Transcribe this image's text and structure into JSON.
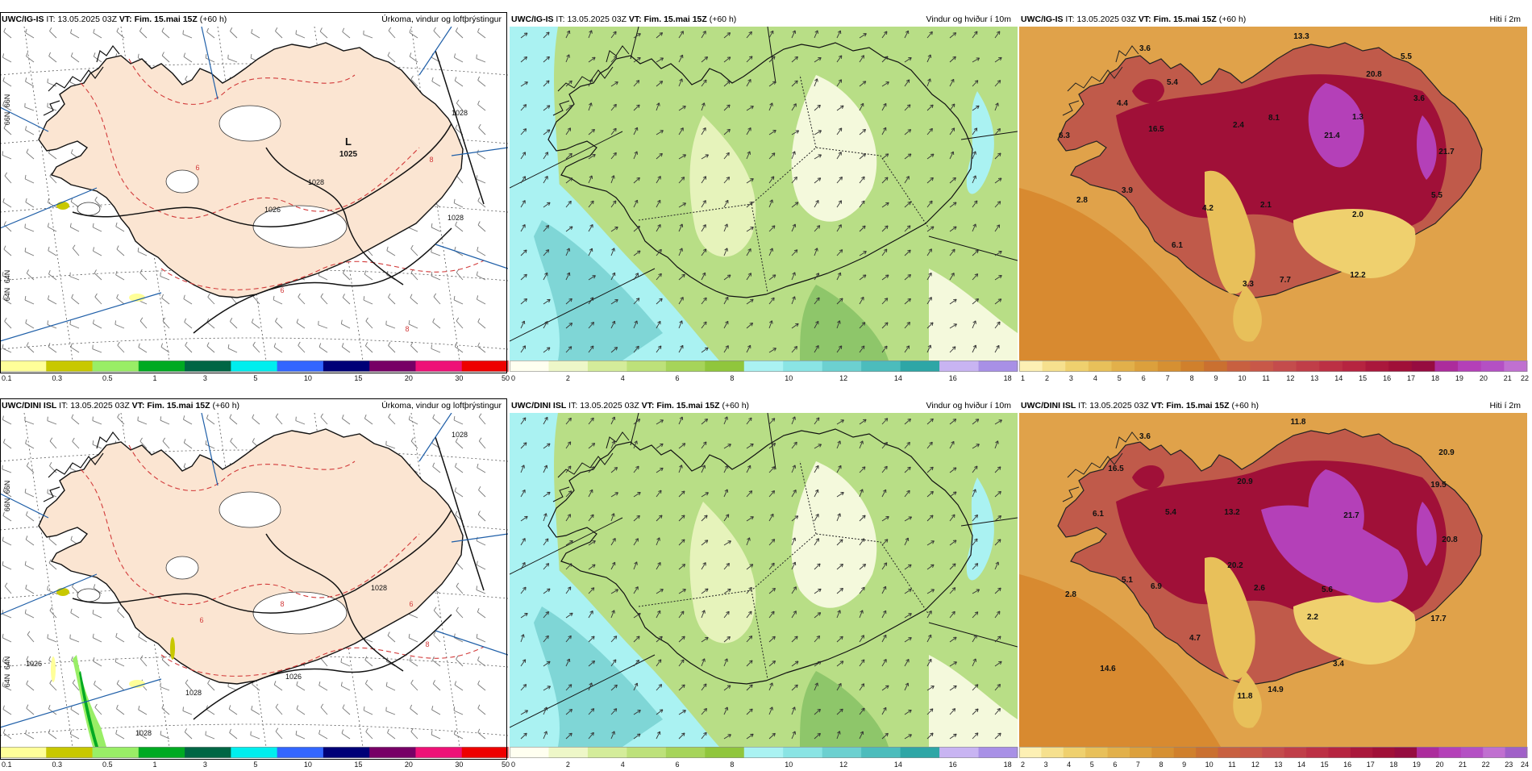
{
  "rows": [
    {
      "model": "UWC/IG-IS",
      "panels": [
        {
          "kind": "precip",
          "model": "UWC/IG-IS",
          "it_label": "IT:",
          "it": "13.05.2025 03Z",
          "vt_label": "VT:",
          "vt": "Fim. 15.mai 15Z",
          "lead": "(+60 h)",
          "title": "Úrkoma, vindur og loftþrýstingur",
          "colorbar": {
            "ticks": [
              "0.1",
              "0.3",
              "0.5",
              "1",
              "3",
              "5",
              "10",
              "15",
              "20",
              "30",
              "50"
            ],
            "colors": [
              "#ffff99",
              "#c8c800",
              "#99ee66",
              "#00aa22",
              "#006644",
              "#00eeee",
              "#3366ff",
              "#000077",
              "#770066",
              "#ee1177",
              "#ee0000"
            ]
          },
          "map_labels": [
            {
              "text": "L",
              "name": "low-pressure-symbol"
            },
            {
              "text": "1025",
              "name": "low-pressure-value"
            },
            {
              "text": "1028",
              "name": "isobar-label"
            },
            {
              "text": "1028",
              "name": "isobar-label"
            },
            {
              "text": "1028",
              "name": "isobar-label"
            },
            {
              "text": "1026",
              "name": "isobar-label"
            },
            {
              "text": "8",
              "name": "temp-contour-label"
            },
            {
              "text": "6",
              "name": "temp-contour-label"
            },
            {
              "text": "8",
              "name": "temp-contour-label"
            },
            {
              "text": "6",
              "name": "temp-contour-label"
            },
            {
              "text": "66N",
              "name": "latitude-label"
            },
            {
              "text": "66N",
              "name": "latitude-label"
            },
            {
              "text": "64N",
              "name": "latitude-label"
            },
            {
              "text": "64N",
              "name": "latitude-label"
            }
          ]
        },
        {
          "kind": "wind",
          "model": "UWC/IG-IS",
          "it_label": "IT:",
          "it": "13.05.2025 03Z",
          "vt_label": "VT:",
          "vt": "Fim. 15.mai 15Z",
          "lead": "(+60 h)",
          "title": "Vindur og hviður í 10m",
          "colorbar": {
            "ticks": [
              "0",
              "2",
              "4",
              "6",
              "8",
              "10",
              "12",
              "14",
              "16",
              "18"
            ],
            "colors": [
              "#fffff0",
              "#eef7c8",
              "#d4ec9a",
              "#bde17a",
              "#a6d45a",
              "#90c63c",
              "#aaf2f2",
              "#8ae4e4",
              "#6cd0d0",
              "#4cbcbc",
              "#2ea6a6",
              "#c8b4f2",
              "#a890e6"
            ]
          },
          "map_labels": []
        },
        {
          "kind": "temp",
          "model": "UWC/IG-IS",
          "it_label": "IT:",
          "it": "13.05.2025 03Z",
          "vt_label": "VT:",
          "vt": "Fim. 15.mai 15Z",
          "lead": "(+60 h)",
          "title": "Hiti í 2m",
          "colorbar": {
            "ticks": [
              "1",
              "2",
              "3",
              "4",
              "5",
              "6",
              "7",
              "8",
              "9",
              "10",
              "11",
              "12",
              "13",
              "14",
              "15",
              "16",
              "17",
              "18",
              "19",
              "20",
              "21",
              "22"
            ],
            "colors": [
              "#fdf0b4",
              "#f6e08e",
              "#efd06e",
              "#e8c05a",
              "#e2b04a",
              "#dca03c",
              "#d69032",
              "#d0802c",
              "#ca7030",
              "#c86040",
              "#c85848",
              "#c44c4c",
              "#c03e48",
              "#bc3044",
              "#b62440",
              "#aa183c",
              "#a01038",
              "#960c40",
              "#ac2c9c",
              "#b440b8",
              "#b450c4",
              "#c070d0"
            ]
          },
          "map_labels": [
            {
              "text": "13.3"
            },
            {
              "text": "3.6"
            },
            {
              "text": "5.5"
            },
            {
              "text": "5.4"
            },
            {
              "text": "20.8"
            },
            {
              "text": "4.4"
            },
            {
              "text": "3.6"
            },
            {
              "text": "16.5"
            },
            {
              "text": "2.4"
            },
            {
              "text": "8.1"
            },
            {
              "text": "21.4"
            },
            {
              "text": "1.3"
            },
            {
              "text": "6.3"
            },
            {
              "text": "21.7"
            },
            {
              "text": "3.9"
            },
            {
              "text": "2.8"
            },
            {
              "text": "4.2"
            },
            {
              "text": "2.1"
            },
            {
              "text": "2.0"
            },
            {
              "text": "5.5"
            },
            {
              "text": "6.1"
            },
            {
              "text": "7.7"
            },
            {
              "text": "12.2"
            },
            {
              "text": "3.3"
            }
          ]
        }
      ]
    },
    {
      "model": "UWC/DINI ISL",
      "panels": [
        {
          "kind": "precip",
          "model": "UWC/DINI ISL",
          "it_label": "IT:",
          "it": "13.05.2025 03Z",
          "vt_label": "VT:",
          "vt": "Fim. 15.mai 15Z",
          "lead": "(+60 h)",
          "title": "Úrkoma, vindur og loftþrýstingur",
          "colorbar": {
            "ticks": [
              "0.1",
              "0.3",
              "0.5",
              "1",
              "3",
              "5",
              "10",
              "15",
              "20",
              "30",
              "50"
            ],
            "colors": [
              "#ffff99",
              "#c8c800",
              "#99ee66",
              "#00aa22",
              "#006644",
              "#00eeee",
              "#3366ff",
              "#000077",
              "#770066",
              "#ee1177",
              "#ee0000"
            ]
          },
          "map_labels": [
            {
              "text": "1028",
              "name": "isobar-label"
            },
            {
              "text": "1028",
              "name": "isobar-label"
            },
            {
              "text": "1028",
              "name": "isobar-label"
            },
            {
              "text": "1026",
              "name": "isobar-label"
            },
            {
              "text": "1026",
              "name": "isobar-label"
            },
            {
              "text": "1028",
              "name": "isobar-label"
            },
            {
              "text": "8",
              "name": "temp-contour-label"
            },
            {
              "text": "6",
              "name": "temp-contour-label"
            },
            {
              "text": "8",
              "name": "temp-contour-label"
            },
            {
              "text": "6",
              "name": "temp-contour-label"
            },
            {
              "text": "66N",
              "name": "latitude-label"
            },
            {
              "text": "66N",
              "name": "latitude-label"
            },
            {
              "text": "64N",
              "name": "latitude-label"
            },
            {
              "text": "64N",
              "name": "latitude-label"
            }
          ]
        },
        {
          "kind": "wind",
          "model": "UWC/DINI ISL",
          "it_label": "IT:",
          "it": "13.05.2025 03Z",
          "vt_label": "VT:",
          "vt": "Fim. 15.mai 15Z",
          "lead": "(+60 h)",
          "title": "Vindur og hviður í 10m",
          "colorbar": {
            "ticks": [
              "0",
              "2",
              "4",
              "6",
              "8",
              "10",
              "12",
              "14",
              "16",
              "18"
            ],
            "colors": [
              "#fffff0",
              "#eef7c8",
              "#d4ec9a",
              "#bde17a",
              "#a6d45a",
              "#90c63c",
              "#aaf2f2",
              "#8ae4e4",
              "#6cd0d0",
              "#4cbcbc",
              "#2ea6a6",
              "#c8b4f2",
              "#a890e6"
            ]
          },
          "map_labels": []
        },
        {
          "kind": "temp",
          "model": "UWC/DINI ISL",
          "it_label": "IT:",
          "it": "13.05.2025 03Z",
          "vt_label": "VT:",
          "vt": "Fim. 15.mai 15Z",
          "lead": "(+60 h)",
          "title": "Hiti í 2m",
          "colorbar": {
            "ticks": [
              "2",
              "3",
              "4",
              "5",
              "6",
              "7",
              "8",
              "9",
              "10",
              "11",
              "12",
              "13",
              "14",
              "15",
              "16",
              "17",
              "18",
              "19",
              "20",
              "21",
              "22",
              "23",
              "24"
            ],
            "colors": [
              "#fdf0b4",
              "#f6e08e",
              "#efd06e",
              "#e8c05a",
              "#e2b04a",
              "#dca03c",
              "#d69032",
              "#d0802c",
              "#ca7030",
              "#c86040",
              "#c85848",
              "#c44c4c",
              "#c03e48",
              "#bc3044",
              "#b62440",
              "#aa183c",
              "#a01038",
              "#960c40",
              "#ac2c9c",
              "#b440b8",
              "#b450c4",
              "#c070d0",
              "#a060c8"
            ]
          },
          "map_labels": [
            {
              "text": "11.8"
            },
            {
              "text": "3.6"
            },
            {
              "text": "20.9"
            },
            {
              "text": "16.5"
            },
            {
              "text": "20.9"
            },
            {
              "text": "19.5"
            },
            {
              "text": "6.1"
            },
            {
              "text": "5.4"
            },
            {
              "text": "13.2"
            },
            {
              "text": "21.7"
            },
            {
              "text": "20.2"
            },
            {
              "text": "20.8"
            },
            {
              "text": "5.1"
            },
            {
              "text": "6.9"
            },
            {
              "text": "2.6"
            },
            {
              "text": "5.6"
            },
            {
              "text": "2.8"
            },
            {
              "text": "2.2"
            },
            {
              "text": "17.7"
            },
            {
              "text": "4.7"
            },
            {
              "text": "14.6"
            },
            {
              "text": "3.4"
            },
            {
              "text": "14.9"
            },
            {
              "text": "11.8"
            }
          ]
        }
      ]
    }
  ]
}
